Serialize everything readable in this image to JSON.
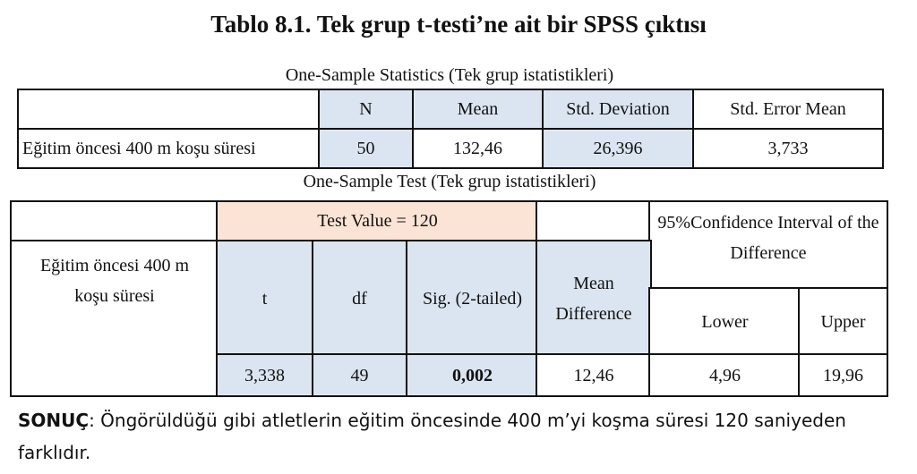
{
  "header": {
    "title": "Tablo 8.1. Tek grup t-testi’ne ait bir SPSS çıktısı"
  },
  "table1": {
    "caption": "One-Sample Statistics (Tek grup istatistikleri)",
    "headers": [
      "N",
      "Mean",
      "Std. Deviation",
      "Std. Error Mean"
    ],
    "rows": [
      [
        "Eğitim öncesi 400 m koşu süresi",
        "50",
        "132,46",
        "26,396",
        "3,733"
      ]
    ]
  },
  "table2": {
    "caption": "One-Sample Test (Tek grup istatistikleri)",
    "row_label": "Eğitim öncesi 400 m koşu süresi",
    "test_value": "Test Value = 120",
    "headers": [
      "t",
      "df",
      "Sig. (2-tailed)",
      "Mean Difference"
    ],
    "ci_title": "95%Confidence Interval of the Difference",
    "ci_headers": [
      "Lower",
      "Upper"
    ],
    "values": [
      "3,338",
      "49",
      "0,002",
      "12,46",
      "4,96",
      "19,96"
    ]
  },
  "conclusion": {
    "label": "SONUÇ",
    "text": ": Öngörüldüğü gibi atletlerin eğitim öncesinde 400 m’yi  koşma süresi 120 saniyeden farklıdır."
  }
}
